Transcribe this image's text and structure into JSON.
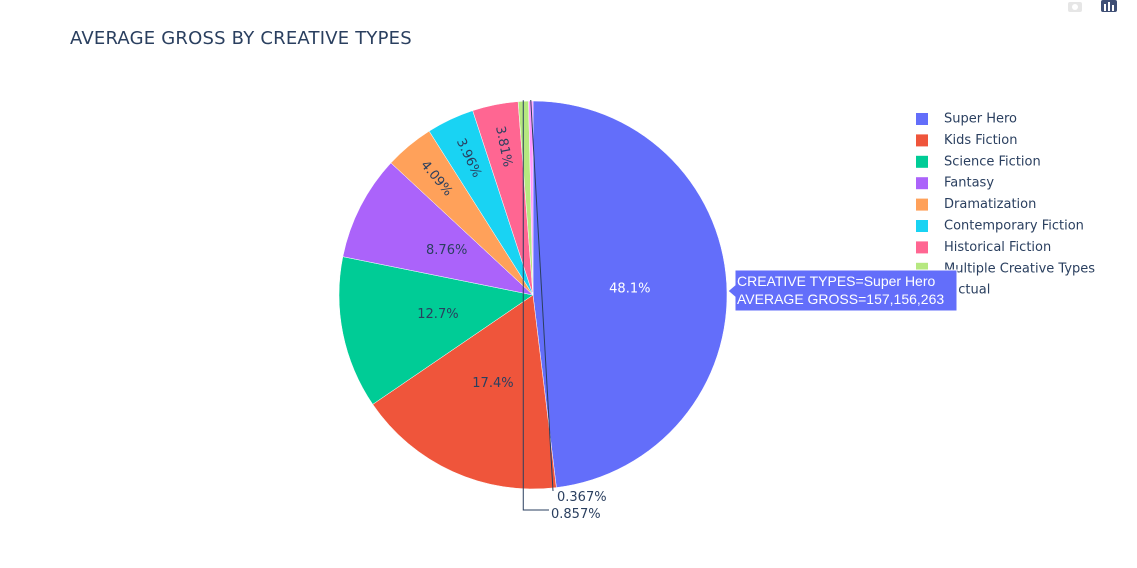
{
  "modebar": {
    "camera_icon": "camera-icon",
    "plotly_logo_icon": "plotly-logo-icon"
  },
  "chart_data": {
    "type": "pie",
    "title": "AVERAGE GROSS BY CREATIVE TYPES",
    "legend_position": "right",
    "slices": [
      {
        "label": "Super Hero",
        "percent_label": "48.1%",
        "percent": 48.1,
        "color": "#636efa",
        "label_inside": true,
        "label_color": "#ffffff"
      },
      {
        "label": "Kids Fiction",
        "percent_label": "17.4%",
        "percent": 17.4,
        "color": "#ef553b",
        "label_inside": true,
        "label_color": "#2a3f5f"
      },
      {
        "label": "Science Fiction",
        "percent_label": "12.7%",
        "percent": 12.7,
        "color": "#00cc96",
        "label_inside": true,
        "label_color": "#2a3f5f"
      },
      {
        "label": "Fantasy",
        "percent_label": "8.76%",
        "percent": 8.76,
        "color": "#ab63fa",
        "label_inside": true,
        "label_color": "#2a3f5f"
      },
      {
        "label": "Dramatization",
        "percent_label": "4.09%",
        "percent": 4.09,
        "color": "#ffa15a",
        "label_inside": true,
        "label_color": "#2a3f5f",
        "rotate": true
      },
      {
        "label": "Contemporary Fiction",
        "percent_label": "3.96%",
        "percent": 3.96,
        "color": "#19d3f3",
        "label_inside": true,
        "label_color": "#2a3f5f",
        "rotate": true
      },
      {
        "label": "Historical Fiction",
        "percent_label": "3.81%",
        "percent": 3.81,
        "color": "#ff6692",
        "label_inside": true,
        "label_color": "#2a3f5f",
        "rotate": true
      },
      {
        "label": "Multiple Creative Types",
        "percent_label": "0.857%",
        "percent": 0.857,
        "color": "#b6e880",
        "label_inside": false,
        "label_color": "#2a3f5f"
      },
      {
        "label": "Factual",
        "percent_label": "0.367%",
        "percent": 0.367,
        "color": "#ff97ff",
        "label_inside": false,
        "label_color": "#2a3f5f"
      }
    ],
    "hover": {
      "line1": "CREATIVE TYPES=Super Hero",
      "line2": "AVERAGE GROSS=157,156,263",
      "color": "#636efa"
    }
  }
}
